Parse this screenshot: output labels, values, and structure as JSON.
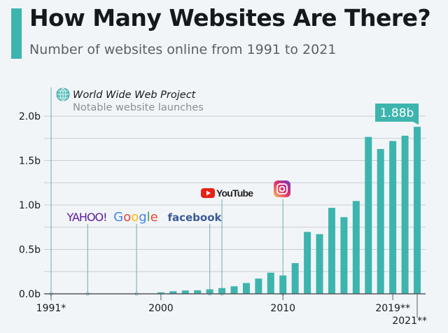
{
  "header": {
    "title": "How Many Websites Are There?",
    "subtitle": "Number of websites online from 1991 to 2021"
  },
  "colors": {
    "bar": "#3db5ae",
    "grid": "#c9cdd1",
    "axis": "#555a5f",
    "text": "#16191c"
  },
  "chart_data": {
    "type": "bar",
    "title": "How Many Websites Are There?",
    "subtitle": "Number of websites online from 1991 to 2021",
    "unit": "billions",
    "x": [
      1991,
      1992,
      1993,
      1994,
      1995,
      1996,
      1997,
      1998,
      1999,
      2000,
      2001,
      2002,
      2003,
      2004,
      2005,
      2006,
      2007,
      2008,
      2009,
      2010,
      2011,
      2012,
      2013,
      2014,
      2015,
      2016,
      2017,
      2018,
      2019,
      2020,
      2021
    ],
    "values": [
      0,
      0,
      0,
      3e-06,
      2e-05,
      0.0003,
      0.001,
      0.002,
      0.003,
      0.017,
      0.029,
      0.038,
      0.04,
      0.051,
      0.065,
      0.085,
      0.122,
      0.172,
      0.238,
      0.207,
      0.346,
      0.697,
      0.672,
      0.968,
      0.863,
      1.045,
      1.766,
      1.63,
      1.72,
      1.78,
      1.88
    ],
    "ylim": [
      0,
      2.0
    ],
    "yticks": [
      {
        "v": 0,
        "label": "0.0b"
      },
      {
        "v": 0.5,
        "label": "0.5b"
      },
      {
        "v": 1.0,
        "label": "1.0b"
      },
      {
        "v": 1.5,
        "label": "1.5b"
      },
      {
        "v": 2.0,
        "label": "2.0b"
      }
    ],
    "xticks": [
      {
        "year": 1991,
        "label": "1991*"
      },
      {
        "year": 2000,
        "label": "2000"
      },
      {
        "year": 2010,
        "label": "2010"
      },
      {
        "year": 2019,
        "label": "2019**"
      },
      {
        "year": 2021,
        "label": "2021**"
      }
    ],
    "grid": true,
    "highlight": {
      "year": 2021,
      "label": "1.88b"
    },
    "annotations": [
      {
        "year": 1991,
        "label": "World Wide Web Project",
        "note": "Notable website launches",
        "icon": "globe-icon"
      },
      {
        "year": 1994,
        "label": "YAHOO!",
        "icon": "yahoo-logo"
      },
      {
        "year": 1998,
        "label": "Google",
        "icon": "google-logo"
      },
      {
        "year": 2004,
        "label": "facebook",
        "icon": "facebook-logo"
      },
      {
        "year": 2005,
        "label": "YouTube",
        "icon": "youtube-logo"
      },
      {
        "year": 2010,
        "label": "Instagram",
        "icon": "instagram-logo"
      }
    ]
  }
}
